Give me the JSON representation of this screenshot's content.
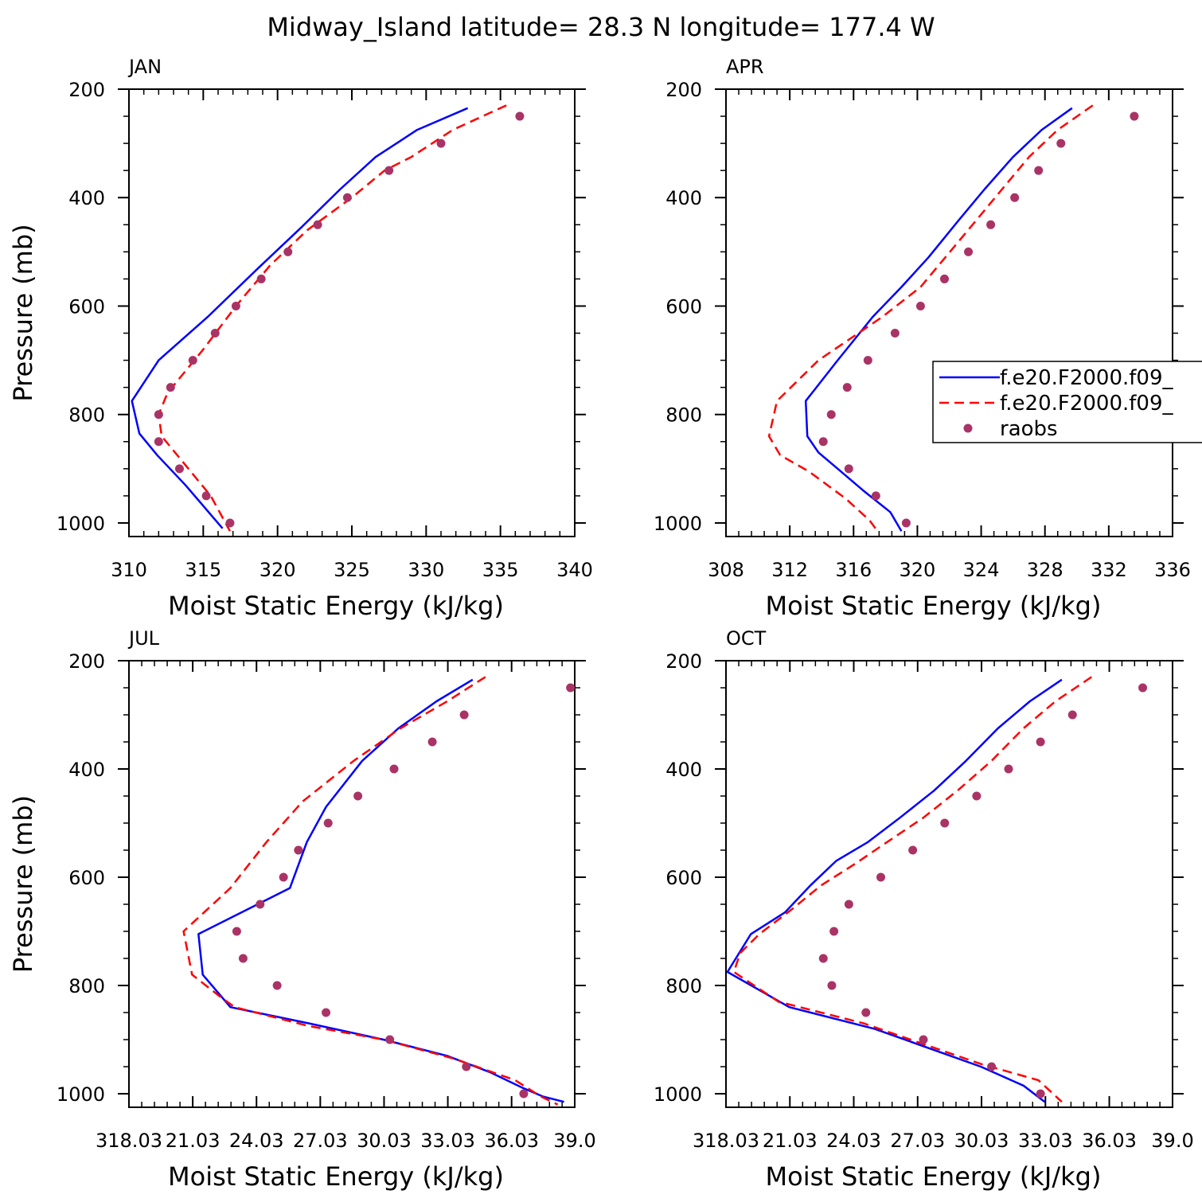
{
  "title": "Midway_Island  latitude= 28.3 N longitude= 177.4 W",
  "legend": {
    "entries": [
      {
        "label": "f.e20.F2000.f09_",
        "style": "solid",
        "color": "#0000ff"
      },
      {
        "label": "f.e20.F2000.f09_",
        "style": "dashed",
        "color": "#ff0000"
      },
      {
        "label": "raobs",
        "style": "dots",
        "color": "#aa3366"
      }
    ]
  },
  "chart_data": [
    {
      "type": "line",
      "panel": "JAN",
      "xlabel": "Moist Static Energy (kJ/kg)",
      "ylabel": "Pressure (mb)",
      "xlim": [
        310,
        340
      ],
      "ylim": [
        1025,
        200
      ],
      "xticks": [
        310,
        315,
        320,
        325,
        330,
        335,
        340
      ],
      "xticklabels": [
        "310",
        "315",
        "320",
        "325",
        "330",
        "335",
        "340"
      ],
      "yticks": [
        200,
        400,
        600,
        800,
        1000
      ],
      "yticklabels": [
        "200",
        "400",
        "600",
        "800",
        "1000"
      ],
      "series": [
        {
          "style": "solid",
          "color": "#0000ff",
          "x": [
            332.8,
            329.4,
            326.6,
            324.2,
            321.6,
            318.7,
            315.3,
            312.0,
            310.2,
            310.7,
            311.9,
            313.8,
            316.3
          ],
          "y": [
            235,
            275,
            325,
            385,
            455,
            530,
            620,
            700,
            775,
            835,
            875,
            930,
            1010
          ]
        },
        {
          "style": "dashed",
          "color": "#ff0000",
          "x": [
            335.4,
            331.8,
            329.0,
            327.2,
            325.0,
            322.0,
            319.5,
            317.2,
            315.0,
            312.6,
            312.0,
            312.2,
            314.0,
            315.5,
            316.8
          ],
          "y": [
            230,
            275,
            325,
            350,
            400,
            460,
            525,
            600,
            680,
            760,
            800,
            840,
            900,
            950,
            1015
          ]
        },
        {
          "style": "dots",
          "color": "#aa3366",
          "x": [
            336.3,
            331.0,
            327.5,
            324.7,
            322.7,
            320.7,
            318.9,
            317.2,
            315.8,
            314.3,
            312.8,
            312.0,
            312.0,
            313.4,
            315.2,
            316.8
          ],
          "y": [
            250,
            300,
            350,
            400,
            450,
            500,
            550,
            600,
            650,
            700,
            750,
            800,
            850,
            900,
            950,
            1000
          ]
        }
      ]
    },
    {
      "type": "line",
      "panel": "APR",
      "xlabel": "Moist Static Energy (kJ/kg)",
      "ylabel": "",
      "xlim": [
        308,
        336
      ],
      "ylim": [
        1025,
        200
      ],
      "xticks": [
        308,
        312,
        316,
        320,
        324,
        328,
        332,
        336
      ],
      "xticklabels": [
        "308",
        "312",
        "316",
        "320",
        "324",
        "328",
        "332",
        "336"
      ],
      "yticks": [
        200,
        400,
        600,
        800,
        1000
      ],
      "yticklabels": [
        "200",
        "400",
        "600",
        "800",
        "1000"
      ],
      "series": [
        {
          "style": "solid",
          "color": "#0000ff",
          "x": [
            329.7,
            327.8,
            326.0,
            324.2,
            322.5,
            320.7,
            319.0,
            317.2,
            315.0,
            313.0,
            313.1,
            313.8,
            315.0,
            316.6,
            318.3,
            319.0
          ],
          "y": [
            235,
            275,
            325,
            385,
            445,
            510,
            565,
            620,
            700,
            775,
            840,
            870,
            900,
            940,
            980,
            1015
          ]
        },
        {
          "style": "dashed",
          "color": "#ff0000",
          "x": [
            331.0,
            328.8,
            327.0,
            325.3,
            323.6,
            321.9,
            320.2,
            317.8,
            313.8,
            311.2,
            310.7,
            311.4,
            313.2,
            315.5,
            317.0,
            317.5
          ],
          "y": [
            230,
            275,
            325,
            385,
            445,
            505,
            565,
            620,
            700,
            775,
            840,
            875,
            905,
            955,
            995,
            1015
          ]
        },
        {
          "style": "dots",
          "color": "#aa3366",
          "x": [
            333.6,
            329.0,
            327.6,
            326.1,
            324.6,
            323.2,
            321.7,
            320.2,
            318.6,
            316.9,
            315.6,
            314.6,
            314.1,
            315.7,
            317.4,
            319.3
          ],
          "y": [
            250,
            300,
            350,
            400,
            450,
            500,
            550,
            600,
            650,
            700,
            750,
            800,
            850,
            900,
            950,
            1000
          ]
        }
      ]
    },
    {
      "type": "line",
      "panel": "JUL",
      "xlabel": "Moist Static Energy (kJ/kg)",
      "ylabel": "Pressure (mb)",
      "xlim": [
        318.03,
        339.0
      ],
      "ylim": [
        1025,
        200
      ],
      "xticks": [
        318.03,
        321.03,
        324.03,
        327.03,
        330.03,
        333.03,
        336.03,
        339.0
      ],
      "xticklabels": [
        "318.03",
        "21.03",
        "24.03",
        "27.03",
        "30.03",
        "33.03",
        "36.03",
        "39.0"
      ],
      "yticks": [
        200,
        400,
        600,
        800,
        1000
      ],
      "yticklabels": [
        "200",
        "400",
        "600",
        "800",
        "1000"
      ],
      "series": [
        {
          "style": "solid",
          "color": "#0000ff",
          "x": [
            334.2,
            332.5,
            330.7,
            329.0,
            327.3,
            326.4,
            325.6,
            321.3,
            321.5,
            322.8,
            326.5,
            330.0,
            333.0,
            335.0,
            336.6,
            337.5,
            338.5
          ],
          "y": [
            235,
            275,
            325,
            385,
            470,
            535,
            620,
            705,
            780,
            840,
            870,
            900,
            930,
            960,
            990,
            1005,
            1015
          ]
        },
        {
          "style": "dashed",
          "color": "#ff0000",
          "x": [
            334.8,
            333.0,
            330.8,
            328.6,
            326.2,
            324.5,
            322.8,
            320.6,
            321.0,
            322.3,
            323.0,
            326.5,
            330.0,
            333.3,
            336.2,
            337.4,
            338.2
          ],
          "y": [
            230,
            275,
            325,
            385,
            460,
            535,
            620,
            700,
            780,
            820,
            840,
            875,
            900,
            935,
            975,
            1005,
            1020
          ]
        },
        {
          "style": "dots",
          "color": "#aa3366",
          "x": [
            338.8,
            333.8,
            332.3,
            330.5,
            328.8,
            327.4,
            326.0,
            325.3,
            324.2,
            323.1,
            323.4,
            325.0,
            327.3,
            330.3,
            333.9,
            336.6
          ],
          "y": [
            250,
            300,
            350,
            400,
            450,
            500,
            550,
            600,
            650,
            700,
            750,
            800,
            850,
            900,
            950,
            1000
          ]
        }
      ]
    },
    {
      "type": "line",
      "panel": "OCT",
      "xlabel": "Moist Static Energy (kJ/kg)",
      "ylabel": "",
      "xlim": [
        318.03,
        339.0
      ],
      "ylim": [
        1025,
        200
      ],
      "xticks": [
        318.03,
        321.03,
        324.03,
        327.03,
        330.03,
        333.03,
        336.03,
        339.0
      ],
      "xticklabels": [
        "318.03",
        "21.03",
        "24.03",
        "27.03",
        "30.03",
        "33.03",
        "36.03",
        "39.0"
      ],
      "yticks": [
        200,
        400,
        600,
        800,
        1000
      ],
      "yticklabels": [
        "200",
        "400",
        "600",
        "800",
        "1000"
      ],
      "series": [
        {
          "style": "solid",
          "color": "#0000ff",
          "x": [
            333.8,
            332.3,
            330.8,
            329.3,
            327.8,
            326.2,
            324.7,
            323.2,
            322.0,
            320.8,
            319.2,
            318.1,
            321.0,
            325.0,
            330.0,
            332.0,
            333.0
          ],
          "y": [
            235,
            275,
            325,
            385,
            440,
            490,
            535,
            570,
            615,
            665,
            705,
            775,
            840,
            880,
            950,
            985,
            1015
          ]
        },
        {
          "style": "dashed",
          "color": "#ff0000",
          "x": [
            335.2,
            333.5,
            332.0,
            330.5,
            328.9,
            327.3,
            325.6,
            324.1,
            322.5,
            321.1,
            319.6,
            318.7,
            318.4,
            320.5,
            324.5,
            330.0,
            332.7,
            333.8
          ],
          "y": [
            230,
            275,
            325,
            385,
            440,
            490,
            535,
            575,
            615,
            660,
            705,
            740,
            775,
            830,
            870,
            945,
            975,
            1015
          ]
        },
        {
          "style": "dots",
          "color": "#aa3366",
          "x": [
            337.6,
            334.3,
            332.8,
            331.3,
            329.8,
            328.3,
            326.8,
            325.3,
            323.8,
            323.1,
            322.6,
            323.0,
            324.6,
            327.3,
            330.5,
            332.8
          ],
          "y": [
            250,
            300,
            350,
            400,
            450,
            500,
            550,
            600,
            650,
            700,
            750,
            800,
            850,
            900,
            950,
            1000
          ]
        }
      ]
    }
  ]
}
